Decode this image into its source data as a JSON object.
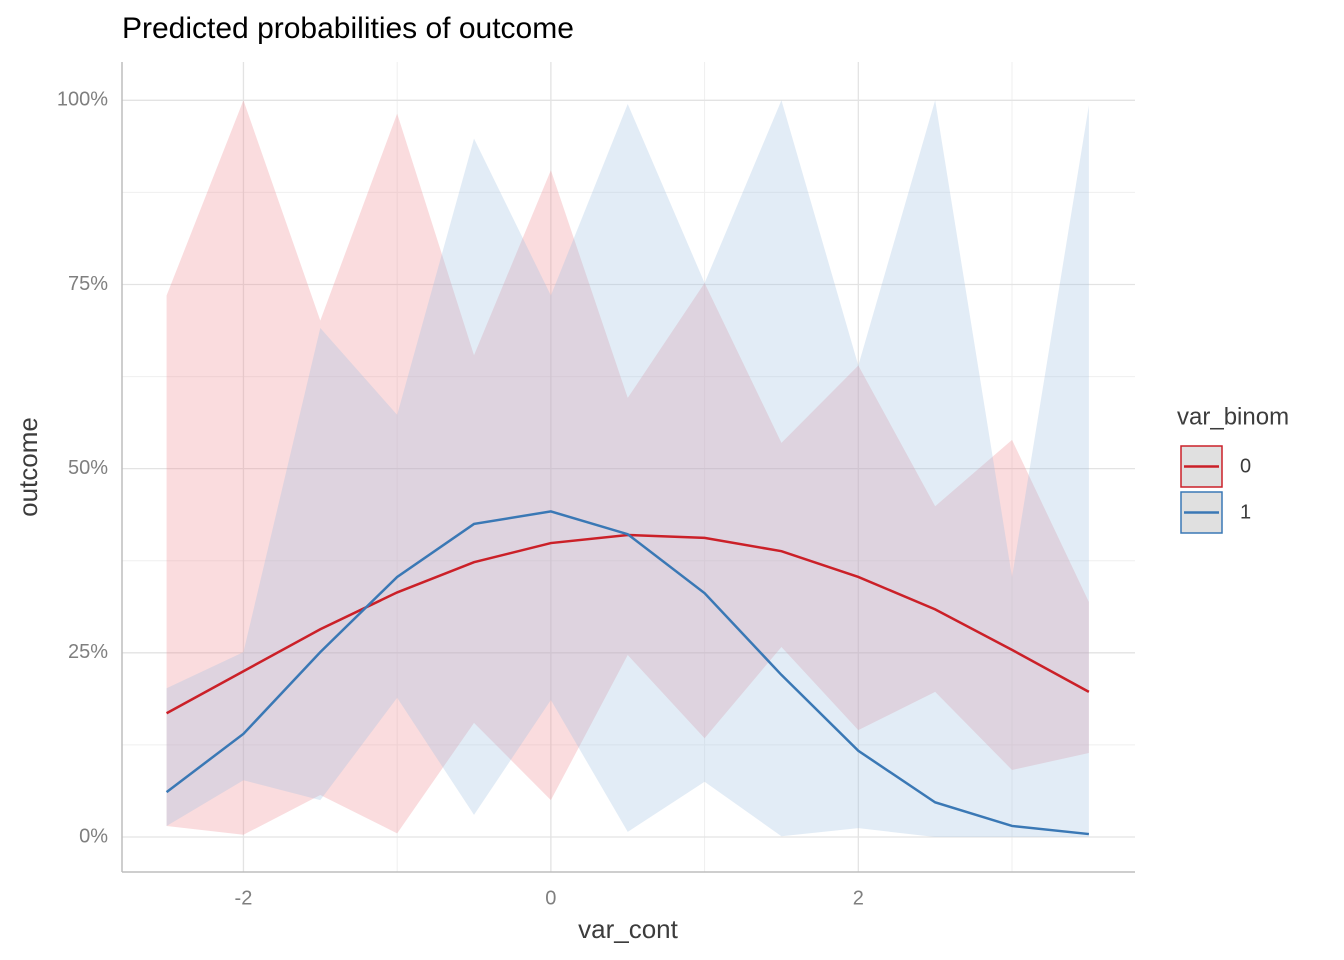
{
  "chart_data": {
    "type": "line",
    "title": "Predicted probabilities of outcome",
    "x_label": "var_cont",
    "y_label": "outcome",
    "legend_title": "var_binom",
    "legend_position": "right",
    "grid": true,
    "x": [
      -2.5,
      -2,
      -1.5,
      -1,
      -0.5,
      0,
      0.5,
      1,
      1.5,
      2,
      2.5,
      3,
      3.5
    ],
    "xlim": [
      -2.79,
      3.8
    ],
    "xticks": [
      -2,
      0,
      2
    ],
    "ylim": [
      -4.75,
      105.2
    ],
    "yticks": [
      {
        "value": 0,
        "label": "0%"
      },
      {
        "value": 25,
        "label": "25%"
      },
      {
        "value": 50,
        "label": "50%"
      },
      {
        "value": 75,
        "label": "75%"
      },
      {
        "value": 100,
        "label": "100%"
      }
    ],
    "series": [
      {
        "name": "0",
        "color": "#cb2028",
        "ribbon_color": "#f08a92",
        "values": [
          16.8,
          22.5,
          28.2,
          33.2,
          37.3,
          39.9,
          41.0,
          40.6,
          38.8,
          35.3,
          30.9,
          25.4,
          19.7
        ],
        "lower": [
          1.5,
          0.3,
          5.7,
          0.5,
          15.5,
          5.0,
          24.7,
          13.4,
          25.8,
          14.5,
          19.7,
          9.1,
          11.4
        ],
        "upper": [
          73.5,
          100,
          70.1,
          98.2,
          65.4,
          90.5,
          59.6,
          75.2,
          53.5,
          64.0,
          44.9,
          53.9,
          31.9
        ]
      },
      {
        "name": "1",
        "color": "#3a78b5",
        "ribbon_color": "#9ec1e0",
        "values": [
          6.1,
          14.0,
          25.1,
          35.3,
          42.5,
          44.2,
          41.1,
          33.1,
          22.0,
          11.7,
          4.7,
          1.5,
          0.4
        ],
        "lower": [
          1.5,
          7.7,
          5.0,
          18.9,
          3.0,
          18.6,
          0.7,
          7.5,
          0.1,
          1.2,
          0,
          0,
          0
        ],
        "upper": [
          20.2,
          25.1,
          69.1,
          57.3,
          94.8,
          73.5,
          99.5,
          75.2,
          100,
          64.0,
          100,
          35.3,
          99.3
        ]
      }
    ]
  }
}
